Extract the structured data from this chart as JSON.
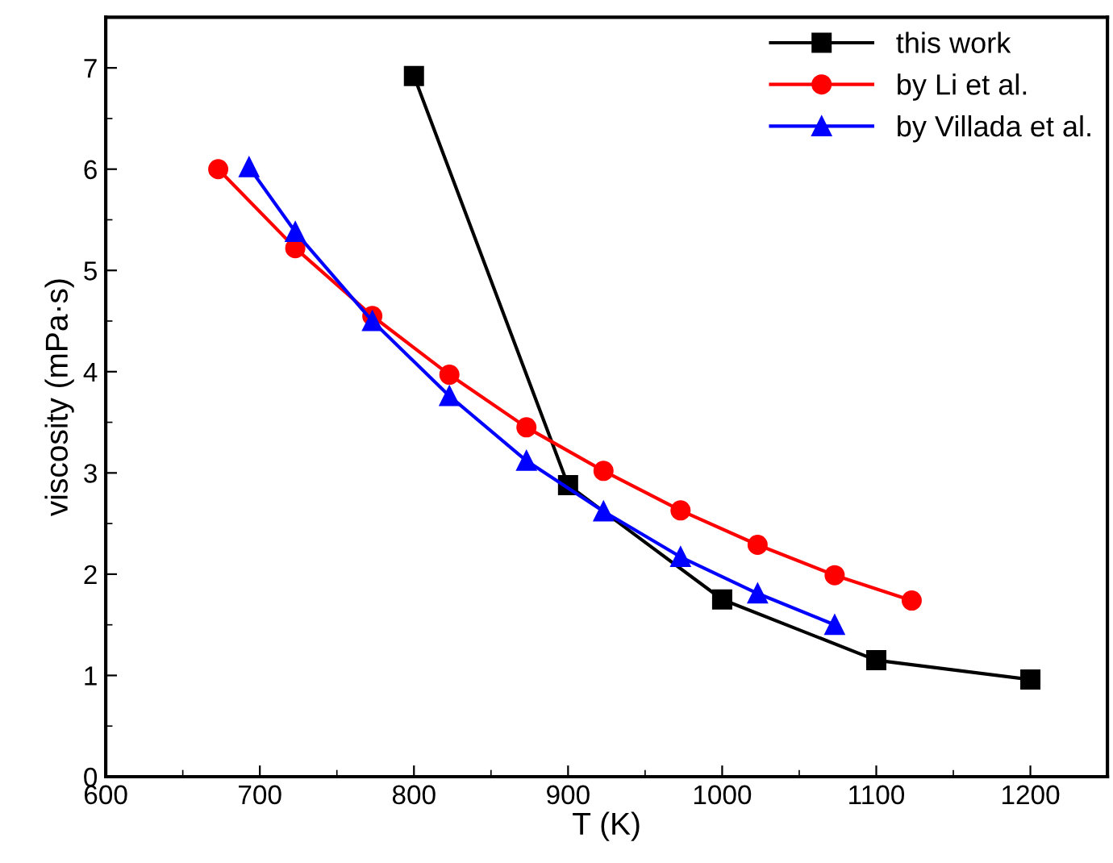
{
  "chart_data": {
    "type": "line",
    "xlabel": "T (K)",
    "ylabel": "viscosity (mPa·s)",
    "xlim": [
      600,
      1250
    ],
    "ylim": [
      0,
      7.5
    ],
    "xticks": [
      600,
      700,
      800,
      900,
      1000,
      1100,
      1200
    ],
    "yticks": [
      0,
      1,
      2,
      3,
      4,
      5,
      6,
      7
    ],
    "grid": false,
    "legend": "top right",
    "line_style": "solid",
    "series": [
      {
        "name": "this work",
        "color": "#000000",
        "marker": "square",
        "x": [
          800,
          900,
          1000,
          1100,
          1200
        ],
        "values": [
          6.92,
          2.88,
          1.75,
          1.15,
          0.96
        ]
      },
      {
        "name": "by Li et al.",
        "color": "#ff0000",
        "marker": "circle",
        "x": [
          673,
          723,
          773,
          823,
          873,
          923,
          973,
          1023,
          1073,
          1123
        ],
        "values": [
          6.0,
          5.22,
          4.55,
          3.97,
          3.45,
          3.02,
          2.63,
          2.29,
          1.99,
          1.74
        ]
      },
      {
        "name": "by Villada et al.",
        "color": "#0000ff",
        "marker": "triangle",
        "x": [
          693,
          723,
          773,
          823,
          873,
          923,
          973,
          1023,
          1073
        ],
        "values": [
          6.02,
          5.38,
          4.5,
          3.76,
          3.12,
          2.62,
          2.17,
          1.81,
          1.5
        ]
      }
    ]
  }
}
